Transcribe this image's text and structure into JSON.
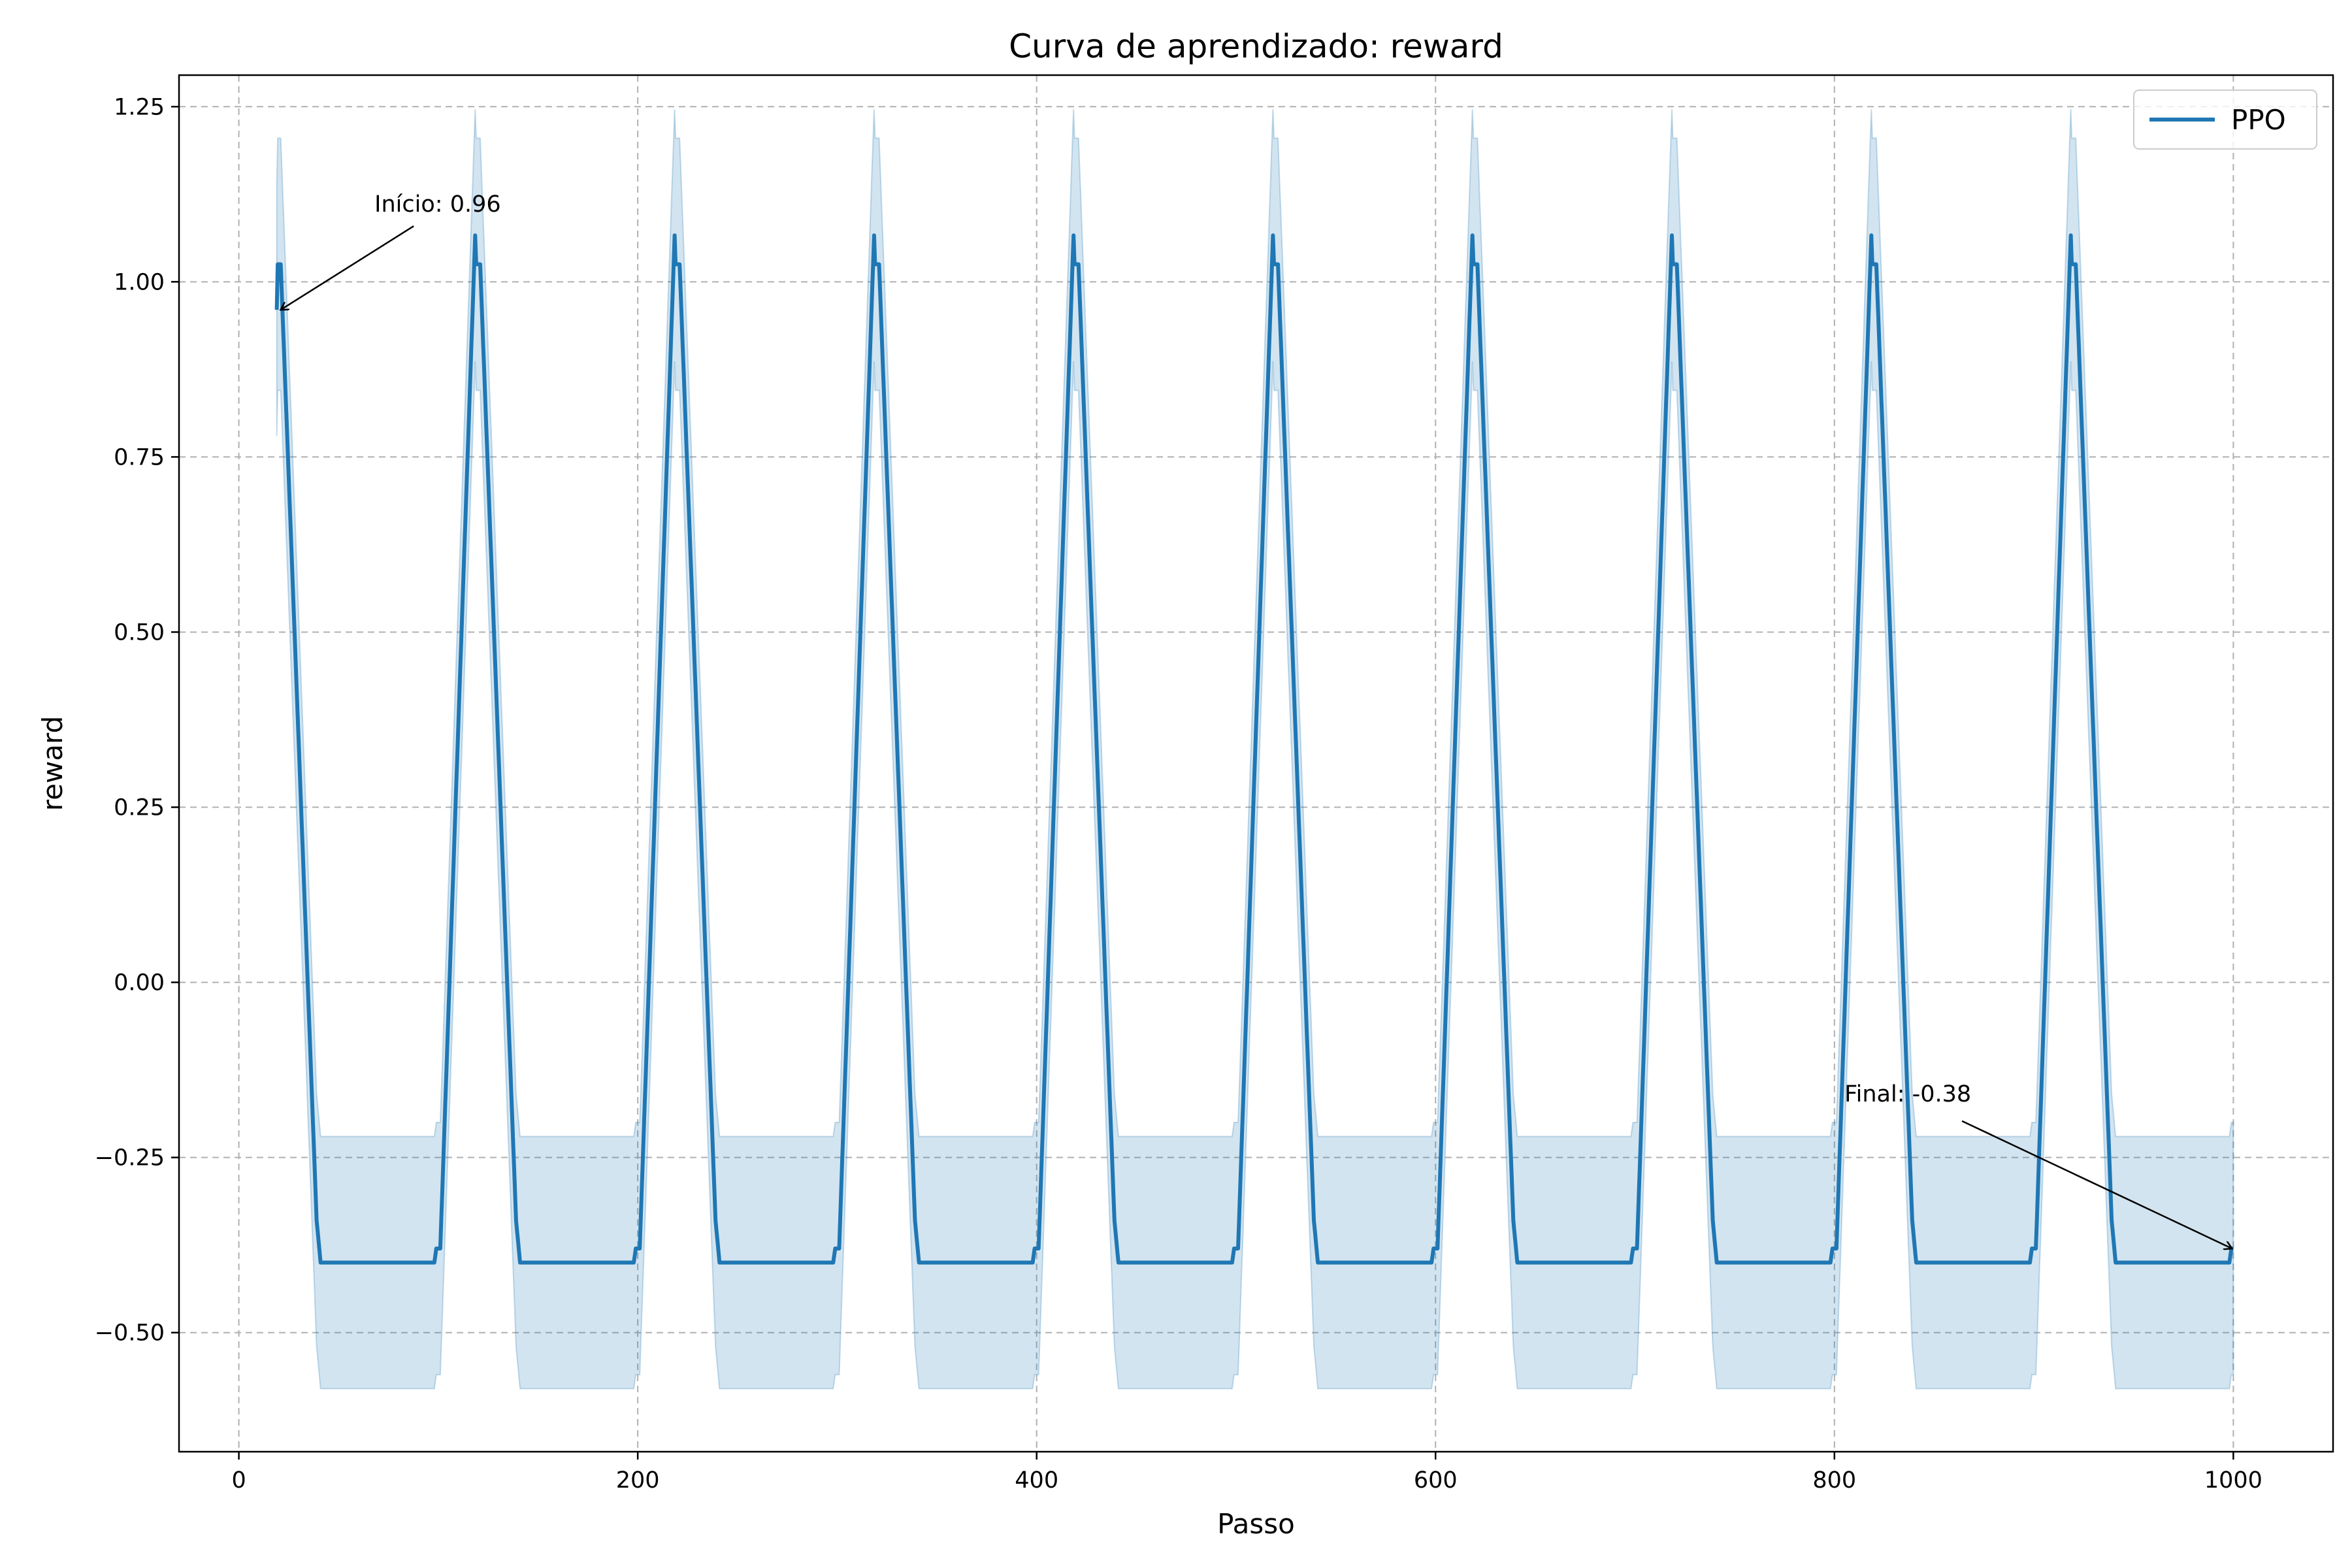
{
  "chart_data": {
    "type": "line",
    "title": "Curva de aprendizado: reward",
    "xlabel": "Passo",
    "ylabel": "reward",
    "xlim": [
      -30,
      1050
    ],
    "ylim": [
      -0.67,
      1.295
    ],
    "xticks": [
      0,
      200,
      400,
      600,
      800,
      1000
    ],
    "xtick_labels": [
      "0",
      "200",
      "400",
      "600",
      "800",
      "1000"
    ],
    "yticks": [
      -0.5,
      -0.25,
      0.0,
      0.25,
      0.5,
      0.75,
      1.0,
      1.25
    ],
    "ytick_labels": [
      "−0.50",
      "−0.25",
      "0.00",
      "0.25",
      "0.50",
      "0.75",
      "1.00",
      "1.25"
    ],
    "grid": true,
    "legend_position": "top-right",
    "colors": {
      "line": "#1f77b4",
      "band": "#1f77b4",
      "grid": "#b0b0b0",
      "axes": "#000000"
    },
    "series": [
      {
        "name": "PPO",
        "x_start": 19,
        "x_end": 1000,
        "period": 100,
        "peak_step": 21,
        "peak_value": 1.025,
        "baseline_value": -0.4,
        "start_value": 0.96,
        "end_value": -0.38,
        "band_halfwidth": 0.18,
        "shoulder_value": -0.34
      }
    ],
    "annotations": [
      {
        "text": "Início: 0.96",
        "x": 19,
        "y": 0.96,
        "text_x": 68,
        "text_y": 1.1
      },
      {
        "text": "Final: -0.38",
        "x": 1000,
        "y": -0.38,
        "text_x": 805,
        "text_y": -0.17
      }
    ]
  }
}
